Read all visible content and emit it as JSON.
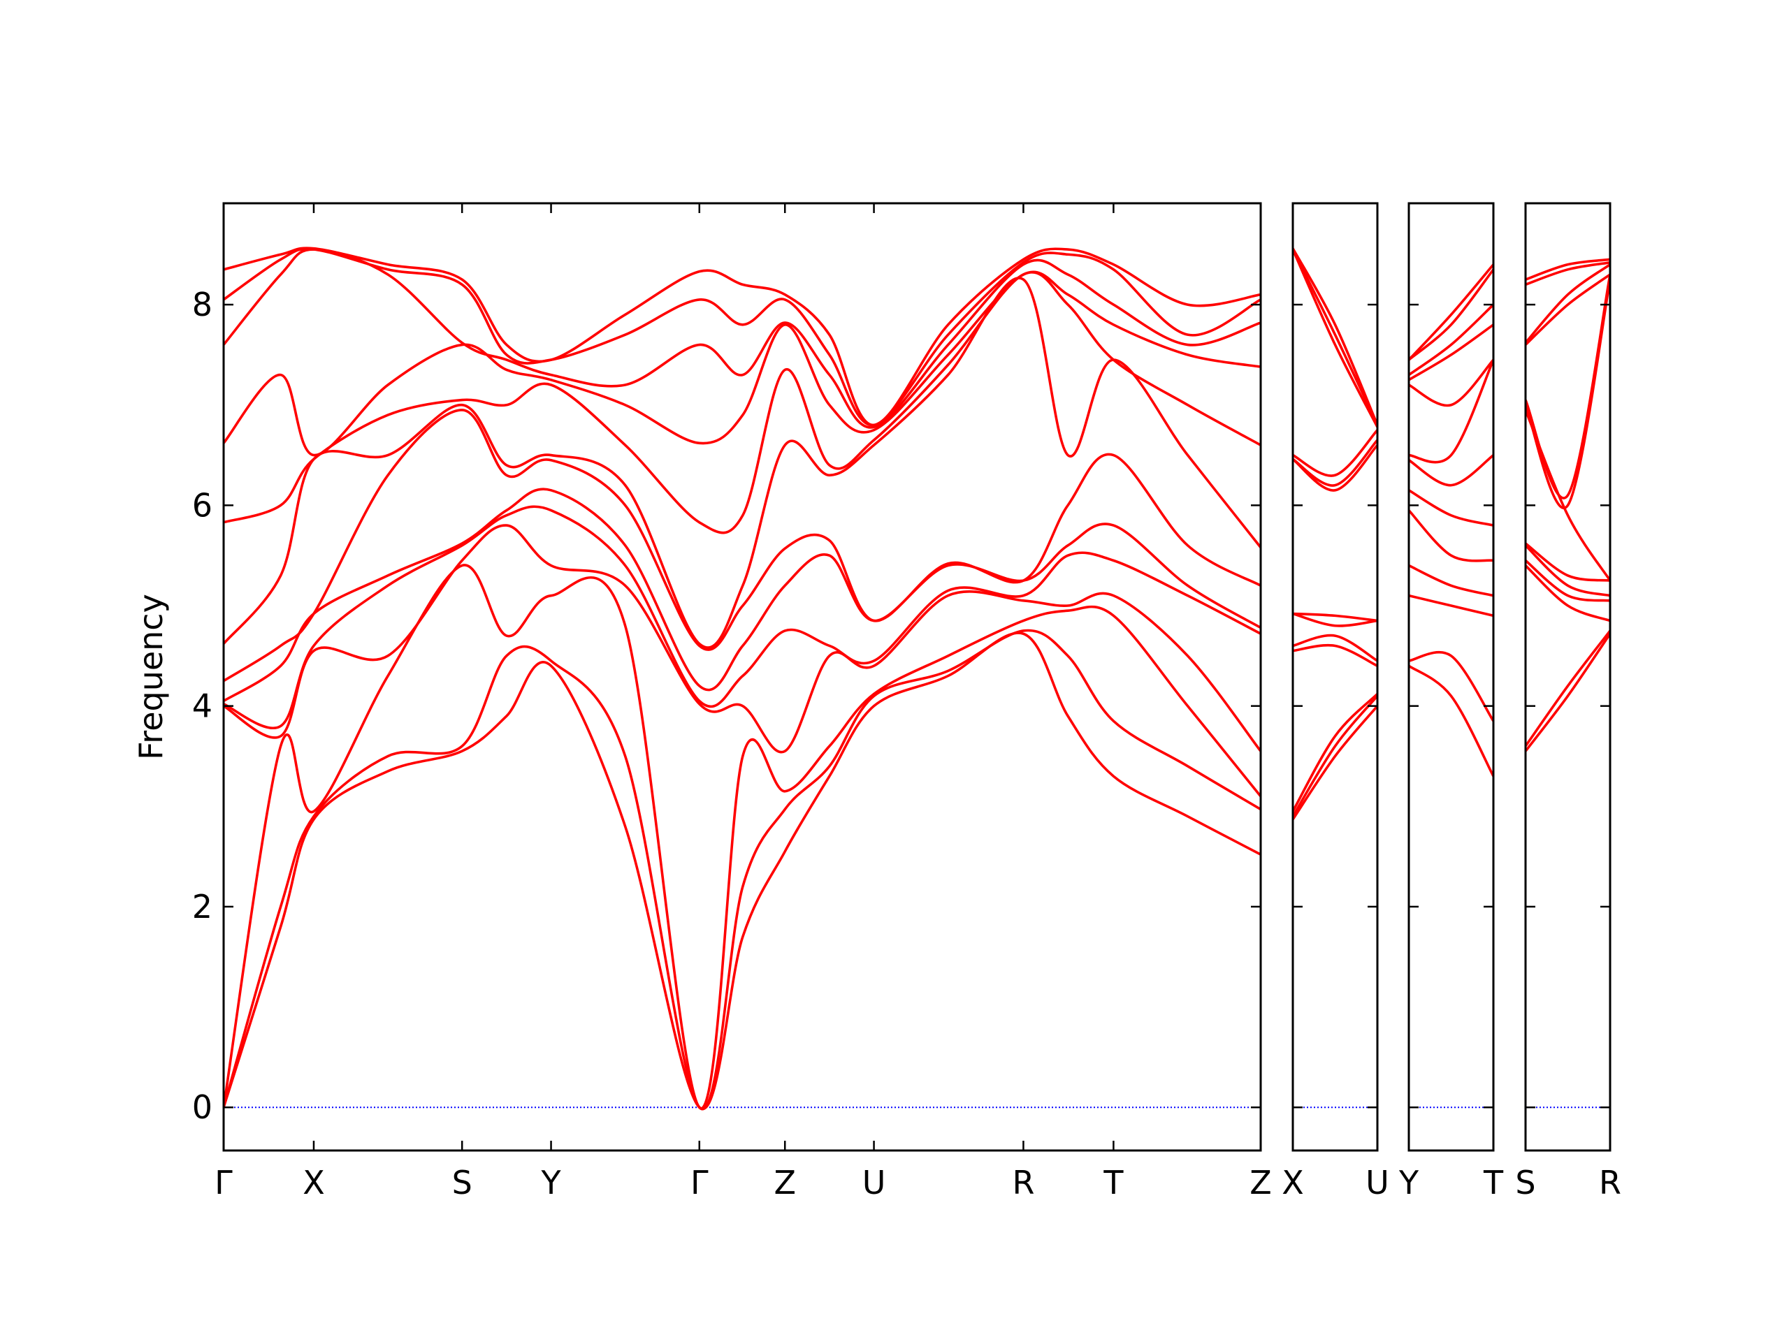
{
  "chart_data": [
    {
      "type": "line",
      "ylabel": "Frequency",
      "show_ytick_labels": true,
      "color": "#ff0000",
      "hline": 0,
      "hline_color": "#0000ff",
      "xlim": [
        0,
        9.09
      ],
      "ylim": [
        -0.43,
        9.01
      ],
      "yticks": [
        0,
        2,
        4,
        6,
        8
      ],
      "xticks": [
        {
          "value": 0,
          "label": "Γ"
        },
        {
          "value": 0.79,
          "label": "X"
        },
        {
          "value": 2.09,
          "label": "S"
        },
        {
          "value": 2.87,
          "label": "Y"
        },
        {
          "value": 4.17,
          "label": "Γ"
        },
        {
          "value": 4.92,
          "label": "Z"
        },
        {
          "value": 5.7,
          "label": "U"
        },
        {
          "value": 7.01,
          "label": "R"
        },
        {
          "value": 7.8,
          "label": "T"
        },
        {
          "value": 9.09,
          "label": "Z"
        }
      ],
      "x": [
        0,
        0.5,
        0.79,
        1.44,
        2.09,
        2.48,
        2.87,
        3.52,
        4.17,
        4.55,
        4.92,
        5.31,
        5.7,
        6.35,
        7.01,
        7.4,
        7.8,
        8.45,
        9.09
      ],
      "series": [
        {
          "values": [
            0,
            1.8,
            2.87,
            3.35,
            3.55,
            3.9,
            4.4,
            2.8,
            0,
            1.7,
            2.55,
            3.3,
            4.0,
            4.3,
            4.72,
            3.9,
            3.3,
            2.9,
            2.52
          ]
        },
        {
          "values": [
            0,
            2.0,
            2.9,
            3.5,
            3.6,
            4.5,
            4.45,
            3.5,
            0,
            2.2,
            2.97,
            3.4,
            4.1,
            4.35,
            4.75,
            4.5,
            3.85,
            3.4,
            2.97
          ]
        },
        {
          "values": [
            0,
            3.6,
            2.95,
            4.3,
            5.4,
            4.7,
            5.1,
            4.8,
            0,
            3.5,
            3.15,
            3.6,
            4.12,
            4.5,
            4.85,
            4.95,
            4.9,
            4.0,
            3.1
          ]
        },
        {
          "values": [
            4.0,
            3.7,
            4.55,
            4.5,
            5.45,
            5.8,
            5.4,
            5.2,
            4.02,
            4.0,
            3.55,
            4.5,
            4.4,
            5.1,
            5.05,
            5.0,
            5.1,
            4.5,
            3.55
          ]
        },
        {
          "values": [
            4.02,
            3.8,
            4.6,
            5.2,
            5.6,
            5.9,
            5.95,
            5.4,
            4.05,
            4.3,
            4.75,
            4.6,
            4.45,
            5.15,
            5.1,
            5.5,
            5.45,
            5.1,
            4.72
          ]
        },
        {
          "values": [
            4.05,
            4.4,
            4.92,
            5.3,
            5.62,
            5.95,
            6.15,
            5.6,
            4.2,
            4.6,
            5.2,
            5.5,
            4.85,
            5.4,
            5.25,
            5.6,
            5.8,
            5.2,
            4.78
          ]
        },
        {
          "values": [
            4.25,
            4.6,
            4.92,
            6.3,
            6.95,
            6.3,
            6.45,
            6.0,
            4.6,
            5.0,
            5.57,
            5.65,
            4.85,
            5.42,
            5.25,
            6.0,
            6.5,
            5.6,
            5.2
          ]
        },
        {
          "values": [
            4.62,
            5.3,
            6.46,
            6.5,
            7.0,
            6.4,
            6.5,
            6.2,
            4.62,
            5.2,
            6.6,
            6.3,
            6.6,
            7.3,
            8.25,
            6.5,
            7.45,
            6.5,
            5.58
          ]
        },
        {
          "values": [
            5.83,
            6.0,
            6.46,
            6.9,
            7.05,
            7.0,
            7.2,
            6.6,
            5.83,
            5.9,
            7.35,
            6.4,
            6.65,
            7.4,
            8.3,
            8.0,
            7.45,
            7.0,
            6.6
          ]
        },
        {
          "values": [
            6.62,
            7.3,
            6.5,
            7.2,
            7.6,
            7.35,
            7.25,
            7.0,
            6.62,
            6.9,
            7.8,
            7.0,
            6.75,
            7.5,
            8.3,
            8.1,
            7.8,
            7.5,
            7.38
          ]
        },
        {
          "values": [
            7.6,
            8.3,
            8.55,
            8.3,
            7.62,
            7.45,
            7.3,
            7.2,
            7.6,
            7.3,
            7.82,
            7.3,
            6.78,
            7.6,
            8.4,
            8.3,
            8.0,
            7.6,
            7.82
          ]
        },
        {
          "values": [
            8.05,
            8.45,
            8.55,
            8.35,
            8.2,
            7.5,
            7.45,
            7.7,
            8.05,
            7.8,
            8.05,
            7.5,
            6.8,
            7.7,
            8.42,
            8.5,
            8.35,
            7.7,
            8.05
          ]
        },
        {
          "values": [
            8.35,
            8.5,
            8.56,
            8.4,
            8.25,
            7.6,
            7.45,
            7.9,
            8.33,
            8.2,
            8.1,
            7.7,
            6.8,
            7.8,
            8.45,
            8.55,
            8.4,
            8.0,
            8.1
          ]
        }
      ]
    },
    {
      "type": "line",
      "show_ytick_labels": false,
      "color": "#ff0000",
      "hline": 0,
      "hline_color": "#0000ff",
      "xlim": [
        0,
        0.74
      ],
      "ylim": [
        -0.43,
        9.01
      ],
      "yticks": [
        0,
        2,
        4,
        6,
        8
      ],
      "xticks": [
        {
          "value": 0,
          "label": "X"
        },
        {
          "value": 0.74,
          "label": "U"
        }
      ],
      "x": [
        0,
        0.37,
        0.74
      ],
      "series": [
        {
          "values": [
            2.87,
            3.5,
            4.0
          ]
        },
        {
          "values": [
            2.9,
            3.6,
            4.1
          ]
        },
        {
          "values": [
            2.95,
            3.7,
            4.12
          ]
        },
        {
          "values": [
            4.55,
            4.6,
            4.4
          ]
        },
        {
          "values": [
            4.6,
            4.7,
            4.45
          ]
        },
        {
          "values": [
            4.92,
            4.8,
            4.85
          ]
        },
        {
          "values": [
            4.92,
            4.9,
            4.85
          ]
        },
        {
          "values": [
            6.46,
            6.15,
            6.6
          ]
        },
        {
          "values": [
            6.46,
            6.2,
            6.65
          ]
        },
        {
          "values": [
            6.5,
            6.3,
            6.75
          ]
        },
        {
          "values": [
            8.55,
            7.6,
            6.78
          ]
        },
        {
          "values": [
            8.55,
            7.7,
            6.8
          ]
        },
        {
          "values": [
            8.56,
            7.8,
            6.8
          ]
        }
      ]
    },
    {
      "type": "line",
      "show_ytick_labels": false,
      "color": "#ff0000",
      "hline": 0,
      "hline_color": "#0000ff",
      "xlim": [
        0,
        0.74
      ],
      "ylim": [
        -0.43,
        9.01
      ],
      "yticks": [
        0,
        2,
        4,
        6,
        8
      ],
      "xticks": [
        {
          "value": 0,
          "label": "Y"
        },
        {
          "value": 0.74,
          "label": "T"
        }
      ],
      "x": [
        0,
        0.37,
        0.74
      ],
      "series": [
        {
          "values": [
            4.4,
            4.1,
            3.3
          ]
        },
        {
          "values": [
            4.45,
            4.5,
            3.85
          ]
        },
        {
          "values": [
            5.1,
            5.0,
            4.9
          ]
        },
        {
          "values": [
            5.4,
            5.2,
            5.1
          ]
        },
        {
          "values": [
            5.95,
            5.5,
            5.45
          ]
        },
        {
          "values": [
            6.15,
            5.9,
            5.8
          ]
        },
        {
          "values": [
            6.45,
            6.2,
            6.5
          ]
        },
        {
          "values": [
            6.5,
            6.5,
            7.45
          ]
        },
        {
          "values": [
            7.2,
            7.0,
            7.45
          ]
        },
        {
          "values": [
            7.25,
            7.5,
            7.8
          ]
        },
        {
          "values": [
            7.3,
            7.6,
            8.0
          ]
        },
        {
          "values": [
            7.45,
            7.8,
            8.35
          ]
        },
        {
          "values": [
            7.45,
            7.9,
            8.4
          ]
        }
      ]
    },
    {
      "type": "line",
      "show_ytick_labels": false,
      "color": "#ff0000",
      "hline": 0,
      "hline_color": "#0000ff",
      "xlim": [
        0,
        0.74
      ],
      "ylim": [
        -0.43,
        9.01
      ],
      "yticks": [
        0,
        2,
        4,
        6,
        8
      ],
      "xticks": [
        {
          "value": 0,
          "label": "S"
        },
        {
          "value": 0.74,
          "label": "R"
        }
      ],
      "x": [
        0,
        0.37,
        0.74
      ],
      "series": [
        {
          "values": [
            3.55,
            4.1,
            4.72
          ]
        },
        {
          "values": [
            3.6,
            4.2,
            4.75
          ]
        },
        {
          "values": [
            5.4,
            5.0,
            4.85
          ]
        },
        {
          "values": [
            5.45,
            5.1,
            5.05
          ]
        },
        {
          "values": [
            5.6,
            5.2,
            5.1
          ]
        },
        {
          "values": [
            5.62,
            5.3,
            5.25
          ]
        },
        {
          "values": [
            6.95,
            5.9,
            5.25
          ]
        },
        {
          "values": [
            7.0,
            6.0,
            8.25
          ]
        },
        {
          "values": [
            7.05,
            6.1,
            8.3
          ]
        },
        {
          "values": [
            7.6,
            8.0,
            8.3
          ]
        },
        {
          "values": [
            7.62,
            8.1,
            8.4
          ]
        },
        {
          "values": [
            8.2,
            8.35,
            8.42
          ]
        },
        {
          "values": [
            8.25,
            8.4,
            8.45
          ]
        }
      ]
    }
  ]
}
